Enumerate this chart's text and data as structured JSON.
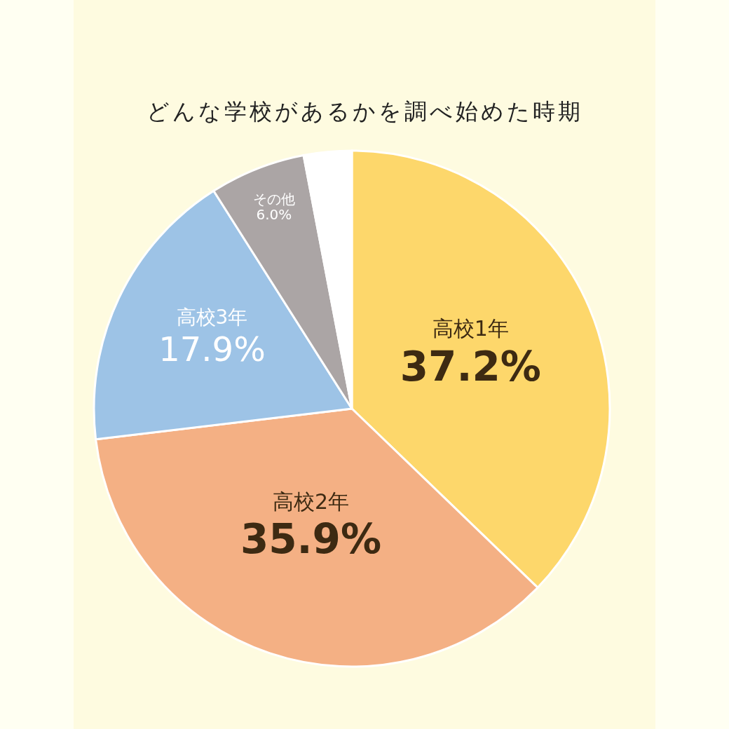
{
  "chart_data": {
    "type": "pie",
    "title": "どんな学校があるかを調べ始めた時期",
    "categories": [
      "高校1年",
      "高校2年",
      "高校3年",
      "その他",
      null
    ],
    "values": [
      37.2,
      35.9,
      17.9,
      6.0,
      3.0
    ],
    "colors": [
      "#fdd76b",
      "#f4b084",
      "#9dc3e6",
      "#aba5a5",
      "#ffffff"
    ],
    "value_labels": [
      "37.2%",
      "35.9%",
      "17.9%",
      "6.0%",
      null
    ]
  }
}
